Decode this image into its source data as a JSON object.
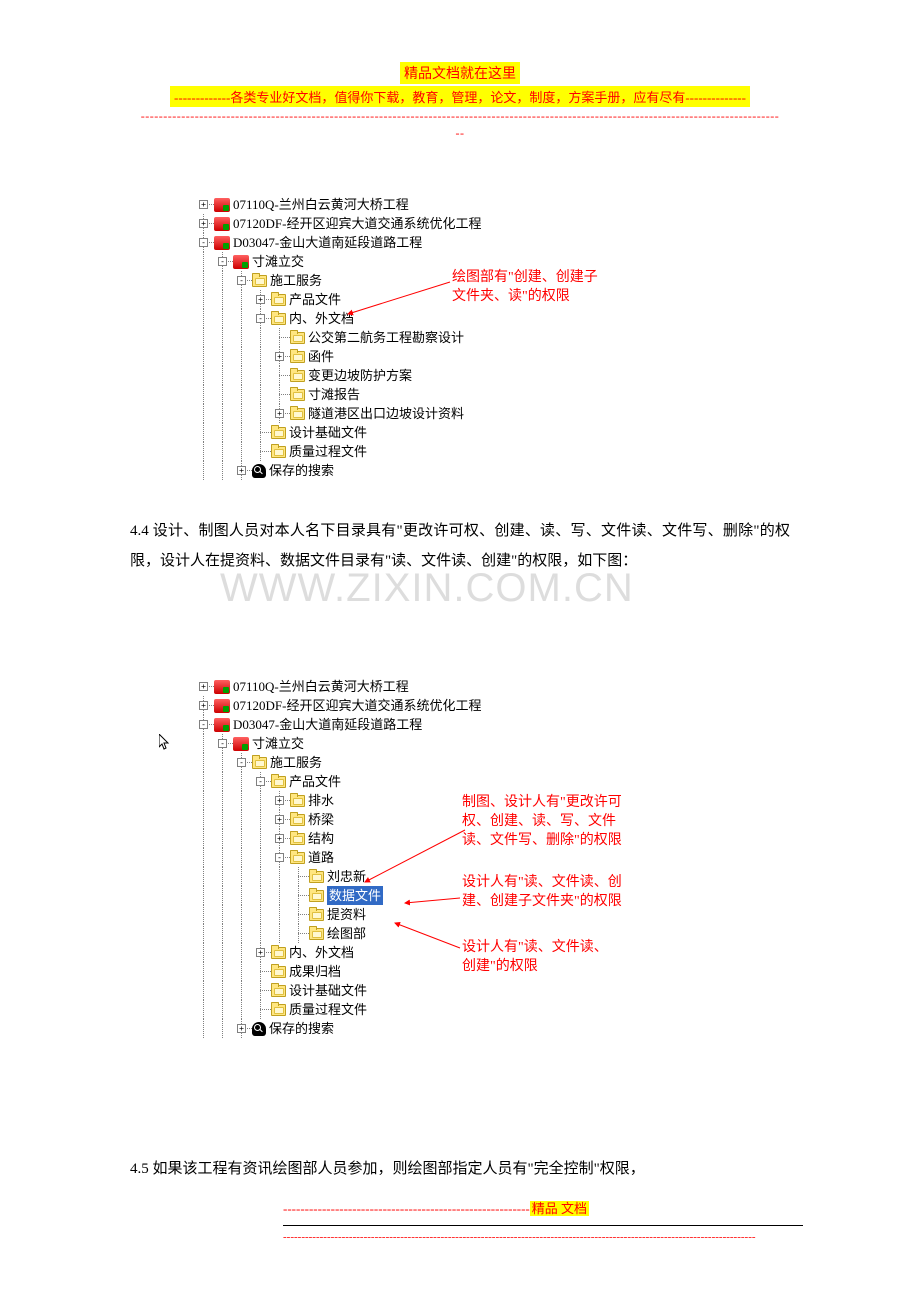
{
  "header": {
    "title": "精品文档就在这里",
    "subtitle": "-------------各类专业好文档，值得你下载，教育，管理，论文，制度，方案手册，应有尽有--------------",
    "dashes": "----------------------------------------------------------------------------------------------------------------------------------------------",
    "dashes2": "--"
  },
  "tree1": {
    "nodes": [
      {
        "depth": 0,
        "exp": "+",
        "icon": "folder-red",
        "label": "07110Q-兰州白云黄河大桥工程"
      },
      {
        "depth": 0,
        "exp": "+",
        "icon": "folder-red",
        "label": "07120DF-经开区迎宾大道交通系统优化工程"
      },
      {
        "depth": 0,
        "exp": "-",
        "icon": "folder-red",
        "label": "D03047-金山大道南延段道路工程"
      },
      {
        "depth": 1,
        "exp": "-",
        "icon": "folder-red",
        "label": "寸滩立交"
      },
      {
        "depth": 2,
        "exp": "-",
        "icon": "folder-yellow",
        "label": "施工服务"
      },
      {
        "depth": 3,
        "exp": "+",
        "icon": "folder-yellow",
        "label": "产品文件"
      },
      {
        "depth": 3,
        "exp": "-",
        "icon": "folder-yellow",
        "label": "内、外文档"
      },
      {
        "depth": 4,
        "exp": "",
        "icon": "folder-yellow",
        "label": "公交第二航务工程勘察设计"
      },
      {
        "depth": 4,
        "exp": "+",
        "icon": "folder-yellow",
        "label": "函件"
      },
      {
        "depth": 4,
        "exp": "",
        "icon": "folder-yellow",
        "label": "变更边坡防护方案"
      },
      {
        "depth": 4,
        "exp": "",
        "icon": "folder-yellow",
        "label": "寸滩报告"
      },
      {
        "depth": 4,
        "exp": "+",
        "icon": "folder-yellow",
        "label": "隧道港区出口边坡设计资料"
      },
      {
        "depth": 3,
        "exp": "",
        "icon": "folder-yellow",
        "label": "设计基础文件"
      },
      {
        "depth": 3,
        "exp": "",
        "icon": "folder-yellow",
        "label": "质量过程文件"
      },
      {
        "depth": 2,
        "exp": "+",
        "icon": "search",
        "label": "保存的搜索"
      }
    ]
  },
  "annotation1": {
    "line1": "绘图部有\"创建、创建子",
    "line2": "文件夹、读\"的权限"
  },
  "paragraph1": "4.4 设计、制图人员对本人名下目录具有\"更改许可权、创建、读、写、文件读、文件写、删除\"的权限，设计人在提资料、数据文件目录有\"读、文件读、创建\"的权限，如下图：",
  "watermark": "WWW.ZIXIN.COM.CN",
  "tree2": {
    "nodes": [
      {
        "depth": 0,
        "exp": "+",
        "icon": "folder-red",
        "label": "07110Q-兰州白云黄河大桥工程"
      },
      {
        "depth": 0,
        "exp": "+",
        "icon": "folder-red",
        "label": "07120DF-经开区迎宾大道交通系统优化工程"
      },
      {
        "depth": 0,
        "exp": "-",
        "icon": "folder-red",
        "label": "D03047-金山大道南延段道路工程"
      },
      {
        "depth": 1,
        "exp": "-",
        "icon": "folder-red",
        "label": "寸滩立交",
        "cursor": true
      },
      {
        "depth": 2,
        "exp": "-",
        "icon": "folder-yellow",
        "label": "施工服务"
      },
      {
        "depth": 3,
        "exp": "-",
        "icon": "folder-yellow",
        "label": "产品文件"
      },
      {
        "depth": 4,
        "exp": "+",
        "icon": "folder-yellow",
        "label": "排水"
      },
      {
        "depth": 4,
        "exp": "+",
        "icon": "folder-yellow",
        "label": "桥梁"
      },
      {
        "depth": 4,
        "exp": "+",
        "icon": "folder-yellow",
        "label": "结构"
      },
      {
        "depth": 4,
        "exp": "-",
        "icon": "folder-yellow",
        "label": "道路"
      },
      {
        "depth": 5,
        "exp": "",
        "icon": "folder-yellow",
        "label": "刘忠新"
      },
      {
        "depth": 5,
        "exp": "",
        "icon": "folder-yellow",
        "label": "数据文件",
        "selected": true
      },
      {
        "depth": 5,
        "exp": "",
        "icon": "folder-yellow",
        "label": "提资料"
      },
      {
        "depth": 5,
        "exp": "",
        "icon": "folder-yellow",
        "label": "绘图部"
      },
      {
        "depth": 3,
        "exp": "+",
        "icon": "folder-yellow",
        "label": "内、外文档"
      },
      {
        "depth": 3,
        "exp": "",
        "icon": "folder-yellow",
        "label": "成果归档"
      },
      {
        "depth": 3,
        "exp": "",
        "icon": "folder-yellow",
        "label": "设计基础文件"
      },
      {
        "depth": 3,
        "exp": "",
        "icon": "folder-yellow",
        "label": "质量过程文件"
      },
      {
        "depth": 2,
        "exp": "+",
        "icon": "search",
        "label": "保存的搜索"
      }
    ]
  },
  "annotation2a": {
    "line1": "制图、设计人有\"更改许可",
    "line2": "权、创建、读、写、文件",
    "line3": "读、文件写、删除\"的权限"
  },
  "annotation2b": {
    "line1": "设计人有\"读、文件读、创",
    "line2": "建、创建子文件夹\"的权限"
  },
  "annotation2c": {
    "line1": "设计人有\"读、文件读、",
    "line2": "创建\"的权限"
  },
  "paragraph2": "4.5 如果该工程有资讯绘图部人员参加，则绘图部指定人员有\"完全控制\"权限，",
  "footer": {
    "dashes": "---------------------------------------------------------",
    "label": "精品   文档",
    "dashes2": "---------------------------------------------------------------------------------------------------------------------------------"
  },
  "colors": {
    "highlight_bg": "#ffff00",
    "red": "#ff0000",
    "selection_bg": "#316ac5",
    "text": "#000000"
  }
}
